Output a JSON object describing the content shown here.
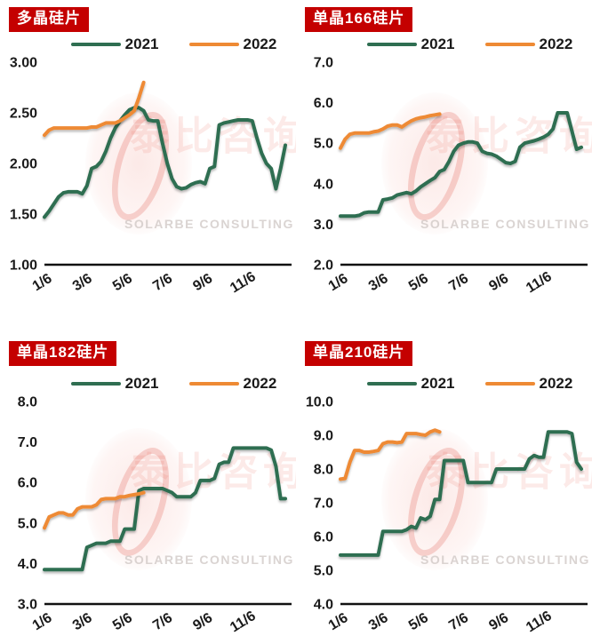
{
  "legend": {
    "s2021": "2021",
    "s2022": "2022"
  },
  "watermark": {
    "cn": "泰比咨询",
    "en": "SOLARBE CONSULTING"
  },
  "colors": {
    "green": "#2F6E51",
    "orange": "#EE8A34",
    "badge_red": "#C40000",
    "axis": "#111111"
  },
  "x_labels": [
    "1/6",
    "3/6",
    "5/6",
    "7/6",
    "9/6",
    "11/6"
  ],
  "chart_data": [
    {
      "type": "line",
      "title": "多晶硅片",
      "ymin": 1.0,
      "ymax": 3.0,
      "y_ticks": [
        "3.00",
        "2.50",
        "2.00",
        "1.50",
        "1.00"
      ],
      "x_tick_labels": [
        "1/6",
        "3/6",
        "5/6",
        "7/6",
        "9/6",
        "11/6"
      ],
      "legend_position": "top",
      "grid": false,
      "series": [
        {
          "name": "2021",
          "color": "#2F6E51",
          "values": [
            1.47,
            1.53,
            1.6,
            1.67,
            1.71,
            1.72,
            1.72,
            1.72,
            1.7,
            1.78,
            1.95,
            1.97,
            2.02,
            2.12,
            2.25,
            2.35,
            2.42,
            2.48,
            2.53,
            2.55,
            2.55,
            2.52,
            2.43,
            2.42,
            2.42,
            2.2,
            2.0,
            1.85,
            1.77,
            1.75,
            1.76,
            1.79,
            1.81,
            1.82,
            1.8,
            1.95,
            1.97,
            2.38,
            2.4,
            2.41,
            2.42,
            2.43,
            2.43,
            2.43,
            2.42,
            2.25,
            2.1,
            2.0,
            1.95,
            1.75,
            1.95,
            2.18
          ]
        },
        {
          "name": "2022",
          "color": "#EE8A34",
          "values": [
            2.28,
            2.33,
            2.35,
            2.35,
            2.35,
            2.35,
            2.35,
            2.35,
            2.35,
            2.35,
            2.36,
            2.36,
            2.38,
            2.4,
            2.4,
            2.4,
            2.42,
            2.45,
            2.48,
            2.52,
            2.65,
            2.8
          ]
        }
      ]
    },
    {
      "type": "line",
      "title": "单晶166硅片",
      "ymin": 2.0,
      "ymax": 7.0,
      "y_ticks": [
        "7.0",
        "6.0",
        "5.0",
        "4.0",
        "3.0",
        "2.0"
      ],
      "x_tick_labels": [
        "1/6",
        "3/6",
        "5/6",
        "7/6",
        "9/6",
        "11/6"
      ],
      "legend_position": "top",
      "grid": false,
      "series": [
        {
          "name": "2021",
          "color": "#2F6E51",
          "values": [
            3.2,
            3.2,
            3.2,
            3.2,
            3.22,
            3.28,
            3.3,
            3.3,
            3.3,
            3.6,
            3.62,
            3.65,
            3.72,
            3.75,
            3.78,
            3.75,
            3.82,
            3.92,
            4.0,
            4.08,
            4.15,
            4.3,
            4.35,
            4.55,
            4.8,
            4.95,
            5.0,
            5.03,
            5.03,
            5.0,
            4.8,
            4.75,
            4.73,
            4.68,
            4.6,
            4.52,
            4.5,
            4.55,
            4.9,
            5.0,
            5.03,
            5.06,
            5.1,
            5.15,
            5.22,
            5.35,
            5.75,
            5.75,
            5.75,
            5.3,
            4.85,
            4.9
          ]
        },
        {
          "name": "2022",
          "color": "#EE8A34",
          "values": [
            4.88,
            5.1,
            5.22,
            5.25,
            5.25,
            5.25,
            5.25,
            5.28,
            5.3,
            5.35,
            5.42,
            5.45,
            5.45,
            5.4,
            5.48,
            5.55,
            5.6,
            5.63,
            5.65,
            5.68,
            5.7,
            5.72
          ]
        }
      ]
    },
    {
      "type": "line",
      "title": "单晶182硅片",
      "ymin": 3.0,
      "ymax": 8.0,
      "y_ticks": [
        "8.0",
        "7.0",
        "6.0",
        "5.0",
        "4.0",
        "3.0"
      ],
      "x_tick_labels": [
        "1/6",
        "3/6",
        "5/6",
        "7/6",
        "9/6",
        "11/6"
      ],
      "legend_position": "top",
      "grid": false,
      "series": [
        {
          "name": "2021",
          "color": "#2F6E51",
          "values": [
            3.85,
            3.85,
            3.85,
            3.85,
            3.85,
            3.85,
            3.85,
            3.85,
            3.85,
            4.4,
            4.45,
            4.5,
            4.5,
            4.5,
            4.55,
            4.55,
            4.55,
            4.85,
            4.85,
            4.85,
            5.8,
            5.85,
            5.85,
            5.85,
            5.85,
            5.85,
            5.8,
            5.75,
            5.65,
            5.65,
            5.65,
            5.65,
            5.75,
            6.05,
            6.05,
            6.05,
            6.1,
            6.45,
            6.5,
            6.5,
            6.85,
            6.85,
            6.85,
            6.85,
            6.85,
            6.85,
            6.85,
            6.85,
            6.8,
            6.4,
            5.6,
            5.6
          ]
        },
        {
          "name": "2022",
          "color": "#EE8A34",
          "values": [
            4.88,
            5.15,
            5.2,
            5.25,
            5.25,
            5.2,
            5.2,
            5.35,
            5.4,
            5.4,
            5.4,
            5.45,
            5.58,
            5.6,
            5.6,
            5.6,
            5.65,
            5.65,
            5.68,
            5.7,
            5.72,
            5.75
          ]
        }
      ]
    },
    {
      "type": "line",
      "title": "单晶210硅片",
      "ymin": 4.0,
      "ymax": 10.0,
      "y_ticks": [
        "10.0",
        "9.0",
        "8.0",
        "7.0",
        "6.0",
        "5.0",
        "4.0"
      ],
      "x_tick_labels": [
        "1/6",
        "3/6",
        "5/6",
        "7/6",
        "9/6",
        "11/6"
      ],
      "legend_position": "top",
      "grid": false,
      "series": [
        {
          "name": "2021",
          "color": "#2F6E51",
          "values": [
            5.45,
            5.45,
            5.45,
            5.45,
            5.45,
            5.45,
            5.45,
            5.45,
            5.45,
            6.15,
            6.15,
            6.15,
            6.15,
            6.15,
            6.2,
            6.3,
            6.25,
            6.55,
            6.5,
            6.6,
            7.1,
            7.1,
            8.25,
            8.25,
            8.25,
            8.25,
            8.25,
            7.6,
            7.6,
            7.6,
            7.6,
            7.6,
            7.6,
            8.0,
            8.0,
            8.0,
            8.0,
            8.0,
            8.0,
            8.0,
            8.3,
            8.4,
            8.35,
            8.35,
            9.1,
            9.1,
            9.1,
            9.1,
            9.1,
            9.05,
            8.2,
            8.0
          ]
        },
        {
          "name": "2022",
          "color": "#EE8A34",
          "values": [
            7.7,
            7.72,
            8.2,
            8.55,
            8.55,
            8.5,
            8.5,
            8.52,
            8.55,
            8.75,
            8.8,
            8.8,
            8.78,
            8.8,
            9.05,
            9.05,
            9.05,
            9.02,
            9.0,
            9.1,
            9.15,
            9.1
          ]
        }
      ]
    }
  ]
}
